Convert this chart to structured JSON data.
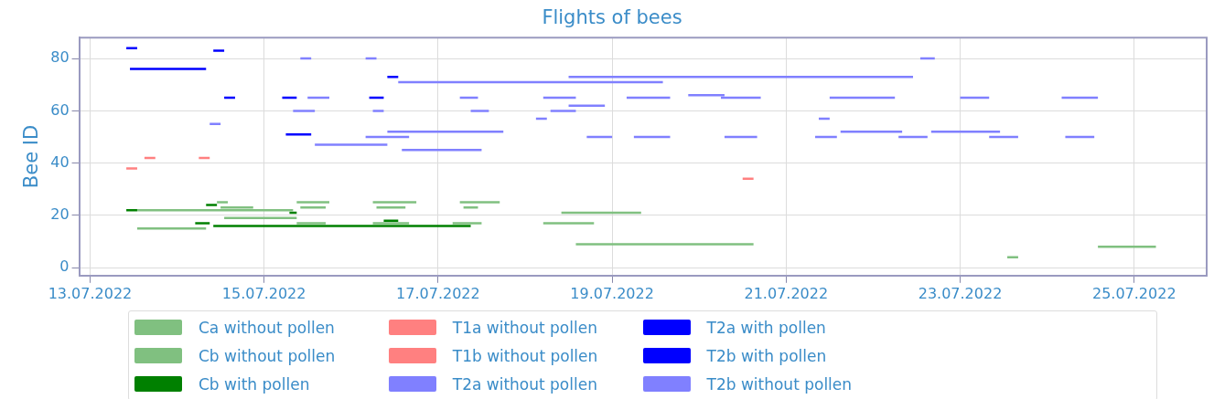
{
  "chart_data": {
    "type": "line",
    "title": "Flights of bees",
    "ylabel": "Bee ID",
    "xlim": [
      "2022-07-12T21:00",
      "2022-07-25T20:00"
    ],
    "ylim": [
      -3,
      88
    ],
    "yticks": [
      0,
      20,
      40,
      60,
      80
    ],
    "xticks": [
      {
        "value": "2022-07-13",
        "label": "13.07.2022"
      },
      {
        "value": "2022-07-15",
        "label": "15.07.2022"
      },
      {
        "value": "2022-07-17",
        "label": "17.07.2022"
      },
      {
        "value": "2022-07-19",
        "label": "19.07.2022"
      },
      {
        "value": "2022-07-21",
        "label": "21.07.2022"
      },
      {
        "value": "2022-07-23",
        "label": "23.07.2022"
      },
      {
        "value": "2022-07-25",
        "label": "25.07.2022"
      }
    ],
    "grid": true,
    "legend": "bottom",
    "marker": "none",
    "line_style": "solid",
    "series": [
      {
        "name": "Ca without pollen",
        "color": "#80c080",
        "x": [
          "2022-07-13T13:00",
          "2022-07-14T08:00"
        ],
        "values": [
          15,
          15
        ]
      },
      {
        "name": "Cb without pollen",
        "color": "#80c080",
        "x": [
          "2022-07-13T13:00",
          "2022-07-15T08:00"
        ],
        "values": [
          22,
          22
        ]
      },
      {
        "name": "Cb with pollen",
        "color": "#008000",
        "x": [
          "2022-07-14T10:00",
          "2022-07-17T09:00"
        ],
        "values": [
          16,
          16
        ]
      },
      {
        "name": "T1a without pollen",
        "color": "#ff8080",
        "x": [
          "2022-07-13T15:00",
          "2022-07-13T18:00"
        ],
        "values": [
          42,
          42
        ]
      },
      {
        "name": "T1b without pollen",
        "color": "#ff8080",
        "x": [
          "2022-07-20T12:00",
          "2022-07-20T15:00"
        ],
        "values": [
          34,
          34
        ]
      },
      {
        "name": "T2a without pollen",
        "color": "#8080ff",
        "x": [
          "2022-07-16T13:00",
          "2022-07-19T14:00"
        ],
        "values": [
          71,
          71
        ]
      },
      {
        "name": "T2a with pollen",
        "color": "#0000ff",
        "x": [
          "2022-07-15T06:00",
          "2022-07-15T13:00"
        ],
        "values": [
          51,
          51
        ]
      },
      {
        "name": "T2b with pollen",
        "color": "#0000ff",
        "x": [
          "2022-07-13T11:00",
          "2022-07-14T08:00"
        ],
        "values": [
          76,
          76
        ]
      },
      {
        "name": "T2b without pollen",
        "color": "#8080ff",
        "x": [
          "2022-07-19T21:00",
          "2022-07-20T07:00"
        ],
        "values": [
          66,
          66
        ]
      },
      {
        "color": "#ff8080",
        "x": [
          "2022-07-14T06:00",
          "2022-07-14T09:00"
        ],
        "values": [
          42,
          42
        ]
      },
      {
        "color": "#80c080",
        "x": [
          "2022-07-14T11:00",
          "2022-07-14T14:00"
        ],
        "values": [
          25,
          25
        ]
      },
      {
        "color": "#80c080",
        "x": [
          "2022-07-15T09:00",
          "2022-07-15T18:00"
        ],
        "values": [
          25,
          25
        ]
      },
      {
        "color": "#80c080",
        "x": [
          "2022-07-16T06:00",
          "2022-07-16T18:00"
        ],
        "values": [
          25,
          25
        ]
      },
      {
        "color": "#80c080",
        "x": [
          "2022-07-17T06:00",
          "2022-07-17T17:00"
        ],
        "values": [
          25,
          25
        ]
      },
      {
        "color": "#80c080",
        "x": [
          "2022-07-18T10:00",
          "2022-07-19T08:00"
        ],
        "values": [
          21,
          21
        ]
      },
      {
        "color": "#80c080",
        "x": [
          "2022-07-18T14:00",
          "2022-07-20T15:00"
        ],
        "values": [
          9,
          9
        ]
      },
      {
        "color": "#80c080",
        "x": [
          "2022-07-24T14:00",
          "2022-07-25T06:00"
        ],
        "values": [
          8,
          8
        ]
      },
      {
        "color": "#80c080",
        "x": [
          "2022-07-23T13:00",
          "2022-07-23T16:00"
        ],
        "values": [
          4,
          4
        ]
      },
      {
        "color": "#80c080",
        "x": [
          "2022-07-14T13:00",
          "2022-07-15T09:00"
        ],
        "values": [
          19,
          19
        ]
      },
      {
        "color": "#80c080",
        "x": [
          "2022-07-15T09:00",
          "2022-07-15T17:00"
        ],
        "values": [
          17,
          17
        ]
      },
      {
        "color": "#80c080",
        "x": [
          "2022-07-16T06:00",
          "2022-07-16T16:00"
        ],
        "values": [
          17,
          17
        ]
      },
      {
        "color": "#80c080",
        "x": [
          "2022-07-17T04:00",
          "2022-07-17T12:00"
        ],
        "values": [
          17,
          17
        ]
      },
      {
        "color": "#80c080",
        "x": [
          "2022-07-18T05:00",
          "2022-07-18T19:00"
        ],
        "values": [
          17,
          17
        ]
      },
      {
        "color": "#80c080",
        "x": [
          "2022-07-14T12:00",
          "2022-07-14T21:00"
        ],
        "values": [
          23,
          23
        ]
      },
      {
        "color": "#80c080",
        "x": [
          "2022-07-15T10:00",
          "2022-07-15T17:00"
        ],
        "values": [
          23,
          23
        ]
      },
      {
        "color": "#80c080",
        "x": [
          "2022-07-16T07:00",
          "2022-07-16T15:00"
        ],
        "values": [
          23,
          23
        ]
      },
      {
        "color": "#80c080",
        "x": [
          "2022-07-17T07:00",
          "2022-07-17T11:00"
        ],
        "values": [
          23,
          23
        ]
      },
      {
        "color": "#008000",
        "x": [
          "2022-07-14T05:00",
          "2022-07-14T09:00"
        ],
        "values": [
          17,
          17
        ]
      },
      {
        "color": "#008000",
        "x": [
          "2022-07-16T09:00",
          "2022-07-16T13:00"
        ],
        "values": [
          18,
          18
        ]
      },
      {
        "color": "#008000",
        "x": [
          "2022-07-13T10:00",
          "2022-07-13T13:00"
        ],
        "values": [
          22,
          22
        ]
      },
      {
        "color": "#008000",
        "x": [
          "2022-07-14T08:00",
          "2022-07-14T11:00"
        ],
        "values": [
          24,
          24
        ]
      },
      {
        "color": "#008000",
        "x": [
          "2022-07-15T07:00",
          "2022-07-15T09:00"
        ],
        "values": [
          21,
          21
        ]
      },
      {
        "color": "#ff8080",
        "x": [
          "2022-07-13T10:00",
          "2022-07-13T13:00"
        ],
        "values": [
          38,
          38
        ]
      },
      {
        "color": "#8080ff",
        "x": [
          "2022-07-18T12:00",
          "2022-07-22T11:00"
        ],
        "values": [
          73,
          73
        ]
      },
      {
        "color": "#8080ff",
        "x": [
          "2022-07-16T10:00",
          "2022-07-17T18:00"
        ],
        "values": [
          52,
          52
        ]
      },
      {
        "color": "#8080ff",
        "x": [
          "2022-07-21T15:00",
          "2022-07-22T08:00"
        ],
        "values": [
          52,
          52
        ]
      },
      {
        "color": "#8080ff",
        "x": [
          "2022-07-22T16:00",
          "2022-07-23T11:00"
        ],
        "values": [
          52,
          52
        ]
      },
      {
        "color": "#8080ff",
        "x": [
          "2022-07-15T14:00",
          "2022-07-16T10:00"
        ],
        "values": [
          47,
          47
        ]
      },
      {
        "color": "#8080ff",
        "x": [
          "2022-07-16T14:00",
          "2022-07-17T12:00"
        ],
        "values": [
          45,
          45
        ]
      },
      {
        "color": "#8080ff",
        "x": [
          "2022-07-15T12:00",
          "2022-07-15T18:00"
        ],
        "values": [
          65,
          65
        ]
      },
      {
        "color": "#8080ff",
        "x": [
          "2022-07-17T06:00",
          "2022-07-17T11:00"
        ],
        "values": [
          65,
          65
        ]
      },
      {
        "color": "#8080ff",
        "x": [
          "2022-07-18T05:00",
          "2022-07-18T14:00"
        ],
        "values": [
          65,
          65
        ]
      },
      {
        "color": "#8080ff",
        "x": [
          "2022-07-19T04:00",
          "2022-07-19T16:00"
        ],
        "values": [
          65,
          65
        ]
      },
      {
        "color": "#8080ff",
        "x": [
          "2022-07-20T06:00",
          "2022-07-20T17:00"
        ],
        "values": [
          65,
          65
        ]
      },
      {
        "color": "#8080ff",
        "x": [
          "2022-07-21T12:00",
          "2022-07-22T06:00"
        ],
        "values": [
          65,
          65
        ]
      },
      {
        "color": "#8080ff",
        "x": [
          "2022-07-23T00:00",
          "2022-07-23T08:00"
        ],
        "values": [
          65,
          65
        ]
      },
      {
        "color": "#8080ff",
        "x": [
          "2022-07-24T04:00",
          "2022-07-24T14:00"
        ],
        "values": [
          65,
          65
        ]
      },
      {
        "color": "#8080ff",
        "x": [
          "2022-07-15T08:00",
          "2022-07-15T14:00"
        ],
        "values": [
          60,
          60
        ]
      },
      {
        "color": "#8080ff",
        "x": [
          "2022-07-16T06:00",
          "2022-07-16T09:00"
        ],
        "values": [
          60,
          60
        ]
      },
      {
        "color": "#8080ff",
        "x": [
          "2022-07-17T09:00",
          "2022-07-17T14:00"
        ],
        "values": [
          60,
          60
        ]
      },
      {
        "color": "#8080ff",
        "x": [
          "2022-07-18T07:00",
          "2022-07-18T14:00"
        ],
        "values": [
          60,
          60
        ]
      },
      {
        "color": "#8080ff",
        "x": [
          "2022-07-16T04:00",
          "2022-07-16T16:00"
        ],
        "values": [
          50,
          50
        ]
      },
      {
        "color": "#8080ff",
        "x": [
          "2022-07-18T17:00",
          "2022-07-19T00:00"
        ],
        "values": [
          50,
          50
        ]
      },
      {
        "color": "#8080ff",
        "x": [
          "2022-07-19T06:00",
          "2022-07-19T16:00"
        ],
        "values": [
          50,
          50
        ]
      },
      {
        "color": "#8080ff",
        "x": [
          "2022-07-20T07:00",
          "2022-07-20T16:00"
        ],
        "values": [
          50,
          50
        ]
      },
      {
        "color": "#8080ff",
        "x": [
          "2022-07-21T08:00",
          "2022-07-21T14:00"
        ],
        "values": [
          50,
          50
        ]
      },
      {
        "color": "#8080ff",
        "x": [
          "2022-07-22T07:00",
          "2022-07-22T15:00"
        ],
        "values": [
          50,
          50
        ]
      },
      {
        "color": "#8080ff",
        "x": [
          "2022-07-23T08:00",
          "2022-07-23T16:00"
        ],
        "values": [
          50,
          50
        ]
      },
      {
        "color": "#8080ff",
        "x": [
          "2022-07-24T05:00",
          "2022-07-24T13:00"
        ],
        "values": [
          50,
          50
        ]
      },
      {
        "color": "#8080ff",
        "x": [
          "2022-07-15T10:00",
          "2022-07-15T13:00"
        ],
        "values": [
          80,
          80
        ]
      },
      {
        "color": "#8080ff",
        "x": [
          "2022-07-16T04:00",
          "2022-07-16T07:00"
        ],
        "values": [
          80,
          80
        ]
      },
      {
        "color": "#8080ff",
        "x": [
          "2022-07-22T13:00",
          "2022-07-22T17:00"
        ],
        "values": [
          80,
          80
        ]
      },
      {
        "color": "#0000ff",
        "x": [
          "2022-07-14T13:00",
          "2022-07-14T16:00"
        ],
        "values": [
          65,
          65
        ]
      },
      {
        "color": "#0000ff",
        "x": [
          "2022-07-15T05:00",
          "2022-07-15T09:00"
        ],
        "values": [
          65,
          65
        ]
      },
      {
        "color": "#0000ff",
        "x": [
          "2022-07-16T05:00",
          "2022-07-16T09:00"
        ],
        "values": [
          65,
          65
        ]
      },
      {
        "color": "#0000ff",
        "x": [
          "2022-07-16T10:00",
          "2022-07-16T13:00"
        ],
        "values": [
          73,
          73
        ]
      },
      {
        "color": "#0000ff",
        "x": [
          "2022-07-14T10:00",
          "2022-07-14T13:00"
        ],
        "values": [
          83,
          83
        ]
      },
      {
        "color": "#0000ff",
        "x": [
          "2022-07-13T10:00",
          "2022-07-13T13:00"
        ],
        "values": [
          84,
          84
        ]
      },
      {
        "color": "#8080ff",
        "x": [
          "2022-07-18T12:00",
          "2022-07-18T22:00"
        ],
        "values": [
          62,
          62
        ]
      },
      {
        "color": "#8080ff",
        "x": [
          "2022-07-18T03:00",
          "2022-07-18T06:00"
        ],
        "values": [
          57,
          57
        ]
      },
      {
        "color": "#8080ff",
        "x": [
          "2022-07-21T09:00",
          "2022-07-21T12:00"
        ],
        "values": [
          57,
          57
        ]
      },
      {
        "color": "#8080ff",
        "x": [
          "2022-07-14T09:00",
          "2022-07-14T12:00"
        ],
        "values": [
          55,
          55
        ]
      }
    ]
  }
}
